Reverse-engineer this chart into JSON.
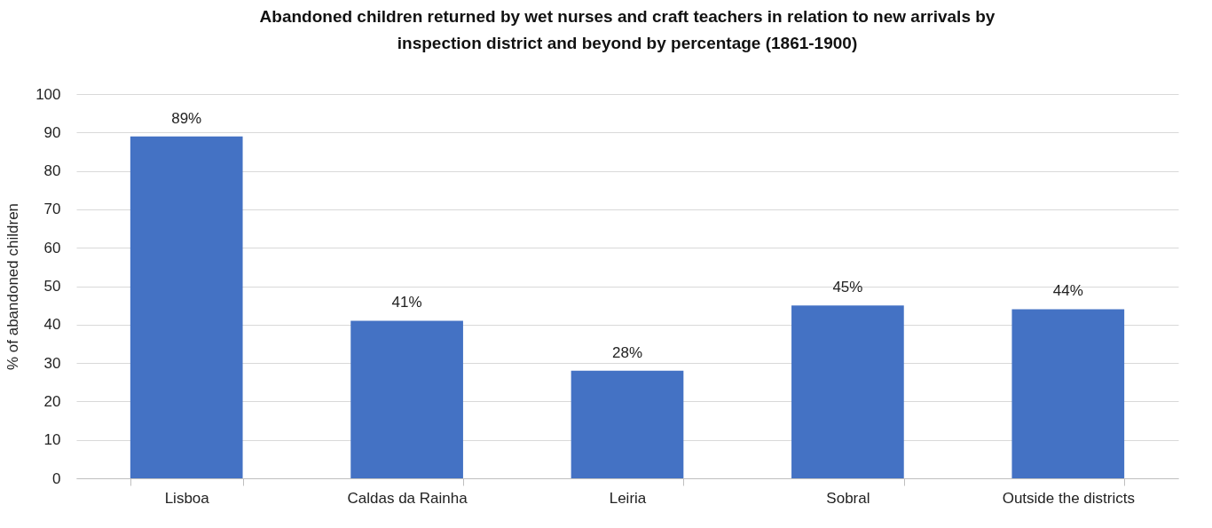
{
  "chart_data": {
    "type": "bar",
    "title": "Abandoned children returned by wet nurses and craft teachers in relation to new arrivals by inspection district and beyond by percentage (1861-1900)",
    "ylabel": "% of abandoned children",
    "categories": [
      "Lisboa",
      "Caldas da Rainha",
      "Leiria",
      "Sobral",
      "Outside the districts"
    ],
    "values": [
      89,
      41,
      28,
      45,
      44
    ],
    "value_labels": [
      "89%",
      "41%",
      "28%",
      "45%",
      "44%"
    ],
    "color": "#4472c4",
    "ylim": [
      0,
      100
    ],
    "yticks": [
      0,
      10,
      20,
      30,
      40,
      50,
      60,
      70,
      80,
      90,
      100
    ],
    "grid": "y"
  }
}
